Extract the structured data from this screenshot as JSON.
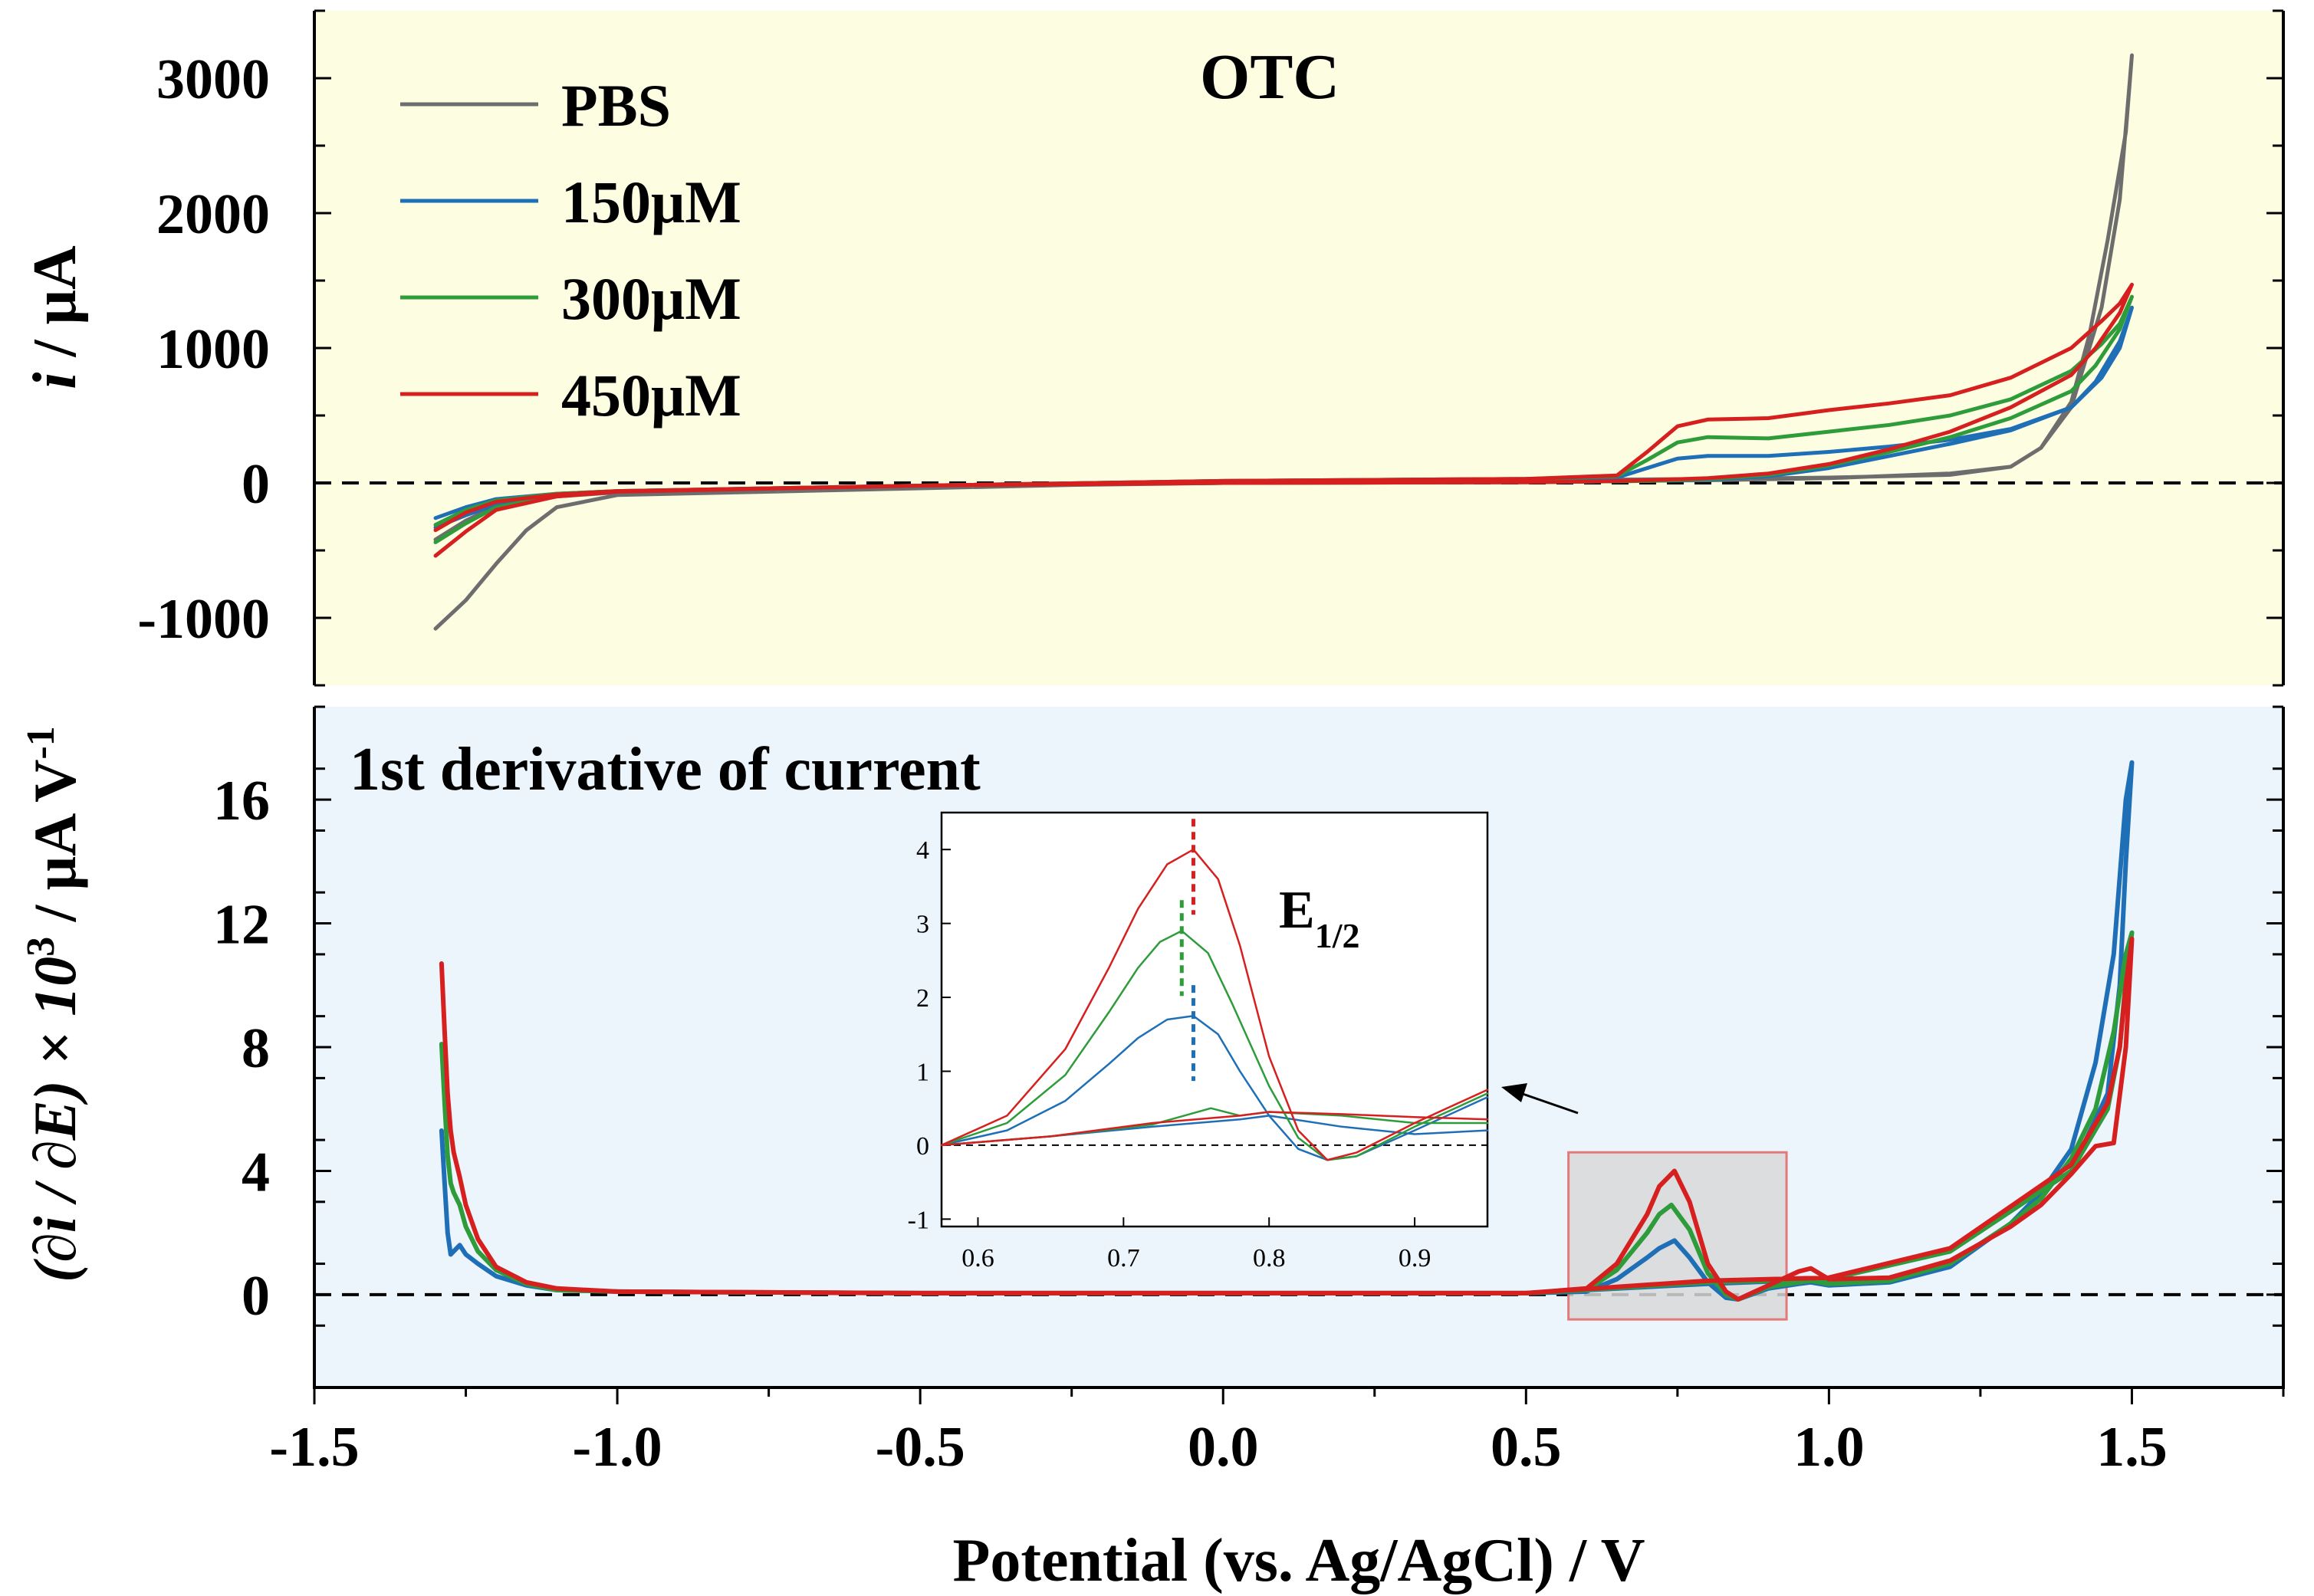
{
  "colors": {
    "top_background": "#fdfde2",
    "bottom_background": "#ecf4fc",
    "zoom_box_fill": "#d8d8d8",
    "zoom_box_stroke": "#e37a78",
    "PBS": "#6d6d6d",
    "150uM": "#1f6fb7",
    "300uM": "#2e9c3a",
    "450uM": "#d62020"
  },
  "xlabel": "Potential (vs. Ag/AgCl)  / V",
  "chart_data": [
    {
      "type": "line",
      "panel": "top",
      "title": "OTC",
      "ylabel_italic": "i",
      "ylabel_rest": " / μA",
      "xlim": [
        -1.5,
        1.75
      ],
      "ylim": [
        -1500,
        3500
      ],
      "xticks": [
        "-1.5",
        "-1.0",
        "-0.5",
        "0.0",
        "0.5",
        "1.0",
        "1.5"
      ],
      "yticks": [
        "-1000",
        "0",
        "1000",
        "2000",
        "3000"
      ],
      "legend_position": "top-left",
      "baseline": 0,
      "series": [
        {
          "name": "PBS",
          "color_key": "PBS",
          "x": [
            -1.3,
            -1.25,
            -1.2,
            -1.15,
            -1.1,
            -1.0,
            -0.5,
            0.0,
            0.5,
            0.8,
            1.0,
            1.2,
            1.3,
            1.35,
            1.4,
            1.45,
            1.48,
            1.5,
            1.49,
            1.46,
            1.43,
            1.4,
            1.35,
            1.3,
            1.2,
            1.0,
            0.8,
            0.5,
            0.0,
            -0.5,
            -1.0,
            -1.1,
            -1.2,
            -1.25,
            -1.3
          ],
          "y": [
            -1080,
            -870,
            -600,
            -350,
            -180,
            -90,
            -40,
            10,
            20,
            30,
            40,
            60,
            120,
            260,
            560,
            1300,
            2100,
            3170,
            2600,
            1800,
            1100,
            600,
            260,
            120,
            70,
            35,
            20,
            10,
            0,
            -30,
            -70,
            -100,
            -170,
            -280,
            -420
          ]
        },
        {
          "name": "150μM",
          "color_key": "150uM",
          "x": [
            -1.3,
            -1.25,
            -1.2,
            -1.1,
            -1.0,
            -0.5,
            0.0,
            0.5,
            0.65,
            0.7,
            0.75,
            0.8,
            0.9,
            1.0,
            1.1,
            1.2,
            1.3,
            1.4,
            1.45,
            1.48,
            1.5,
            1.48,
            1.44,
            1.4,
            1.3,
            1.2,
            1.1,
            1.0,
            0.9,
            0.8,
            0.7,
            0.6,
            0.5,
            0.0,
            -0.5,
            -1.0,
            -1.1,
            -1.2,
            -1.25,
            -1.3
          ],
          "y": [
            -330,
            -240,
            -160,
            -90,
            -60,
            -20,
            15,
            30,
            40,
            110,
            180,
            200,
            200,
            230,
            270,
            320,
            400,
            560,
            780,
            1000,
            1300,
            1050,
            750,
            560,
            390,
            290,
            200,
            110,
            50,
            25,
            15,
            10,
            5,
            0,
            -20,
            -60,
            -80,
            -120,
            -180,
            -260
          ]
        },
        {
          "name": "300μM",
          "color_key": "300uM",
          "x": [
            -1.3,
            -1.25,
            -1.2,
            -1.1,
            -1.0,
            -0.5,
            0.0,
            0.5,
            0.65,
            0.7,
            0.75,
            0.8,
            0.9,
            1.0,
            1.1,
            1.2,
            1.3,
            1.4,
            1.45,
            1.48,
            1.5,
            1.48,
            1.44,
            1.4,
            1.3,
            1.2,
            1.1,
            1.0,
            0.9,
            0.8,
            0.7,
            0.6,
            0.5,
            0.0,
            -0.5,
            -1.0,
            -1.1,
            -1.2,
            -1.25,
            -1.3
          ],
          "y": [
            -440,
            -300,
            -180,
            -95,
            -60,
            -20,
            15,
            30,
            50,
            170,
            300,
            340,
            330,
            380,
            430,
            500,
            620,
            830,
            1030,
            1180,
            1380,
            1140,
            870,
            680,
            480,
            340,
            230,
            130,
            60,
            30,
            15,
            10,
            5,
            0,
            -20,
            -60,
            -80,
            -130,
            -200,
            -310
          ]
        },
        {
          "name": "450μM",
          "color_key": "450uM",
          "x": [
            -1.3,
            -1.25,
            -1.2,
            -1.1,
            -1.0,
            -0.5,
            0.0,
            0.5,
            0.65,
            0.7,
            0.75,
            0.8,
            0.9,
            1.0,
            1.1,
            1.2,
            1.3,
            1.4,
            1.45,
            1.48,
            1.5,
            1.48,
            1.44,
            1.4,
            1.3,
            1.2,
            1.1,
            1.0,
            0.9,
            0.8,
            0.7,
            0.6,
            0.5,
            0.0,
            -0.5,
            -1.0,
            -1.1,
            -1.2,
            -1.25,
            -1.3
          ],
          "y": [
            -540,
            -360,
            -200,
            -100,
            -65,
            -20,
            15,
            30,
            55,
            230,
            420,
            470,
            480,
            540,
            590,
            650,
            780,
            1000,
            1200,
            1330,
            1470,
            1260,
            1000,
            800,
            560,
            380,
            250,
            140,
            70,
            35,
            20,
            10,
            5,
            0,
            -20,
            -60,
            -85,
            -140,
            -220,
            -350
          ]
        }
      ]
    },
    {
      "type": "line",
      "panel": "bottom",
      "title": "1st derivative of current",
      "ylabel_main": "(∂i / ∂E) × 10",
      "ylabel_sup": "3",
      "ylabel_tail": " / μA V",
      "ylabel_sup2": "-1",
      "xlim": [
        -1.5,
        1.75
      ],
      "ylim": [
        -3,
        19
      ],
      "yticks": [
        "0",
        "4",
        "8",
        "12",
        "16"
      ],
      "baseline": 0,
      "zoom_box": {
        "x": [
          0.57,
          0.93
        ],
        "y": [
          -0.8,
          4.6
        ]
      },
      "series": [
        {
          "name": "150μM",
          "color_key": "150uM",
          "x": [
            -1.29,
            -1.285,
            -1.28,
            -1.275,
            -1.27,
            -1.26,
            -1.25,
            -1.23,
            -1.2,
            -1.15,
            -1.1,
            -1.0,
            -0.5,
            0.0,
            0.5,
            0.6,
            0.65,
            0.7,
            0.72,
            0.745,
            0.77,
            0.8,
            0.83,
            0.85,
            0.9,
            0.95,
            0.97,
            1.0,
            1.1,
            1.2,
            1.3,
            1.35,
            1.4,
            1.44,
            1.47,
            1.49,
            1.5,
            1.49,
            1.48,
            1.46,
            1.4,
            1.2,
            1.0,
            0.8,
            0.5
          ],
          "y": [
            5.3,
            3.6,
            2.0,
            1.3,
            1.4,
            1.6,
            1.3,
            1.0,
            0.6,
            0.3,
            0.15,
            0.1,
            0.05,
            0.05,
            0.05,
            0.1,
            0.5,
            1.2,
            1.5,
            1.75,
            1.2,
            0.4,
            -0.1,
            -0.15,
            0.2,
            0.35,
            0.4,
            0.3,
            0.4,
            0.9,
            2.3,
            3.3,
            4.7,
            7.5,
            11.0,
            16.0,
            17.2,
            14.0,
            10.0,
            6.5,
            4.0,
            1.4,
            0.5,
            0.35,
            0.05
          ]
        },
        {
          "name": "300μM",
          "color_key": "300uM",
          "x": [
            -1.29,
            -1.285,
            -1.28,
            -1.275,
            -1.27,
            -1.26,
            -1.25,
            -1.23,
            -1.2,
            -1.15,
            -1.1,
            -1.0,
            -0.5,
            0.0,
            0.5,
            0.6,
            0.65,
            0.7,
            0.72,
            0.74,
            0.77,
            0.8,
            0.83,
            0.85,
            0.9,
            0.95,
            0.97,
            1.0,
            1.1,
            1.2,
            1.3,
            1.35,
            1.4,
            1.44,
            1.47,
            1.49,
            1.5,
            1.49,
            1.48,
            1.46,
            1.4,
            1.2,
            1.0,
            0.8,
            0.5
          ],
          "y": [
            8.1,
            6.2,
            4.5,
            3.6,
            3.3,
            2.9,
            2.2,
            1.4,
            0.8,
            0.35,
            0.15,
            0.1,
            0.05,
            0.05,
            0.05,
            0.15,
            0.8,
            2.0,
            2.6,
            2.9,
            2.1,
            0.7,
            0.0,
            -0.15,
            0.25,
            0.4,
            0.45,
            0.35,
            0.45,
            1.0,
            2.3,
            3.1,
            4.4,
            6.0,
            8.5,
            11.0,
            11.7,
            10.2,
            8.0,
            6.0,
            4.0,
            1.4,
            0.5,
            0.4,
            0.05
          ]
        },
        {
          "name": "450μM",
          "color_key": "450uM",
          "x": [
            -1.29,
            -1.285,
            -1.28,
            -1.275,
            -1.27,
            -1.26,
            -1.25,
            -1.23,
            -1.2,
            -1.15,
            -1.1,
            -1.0,
            -0.5,
            0.0,
            0.5,
            0.6,
            0.65,
            0.7,
            0.72,
            0.745,
            0.77,
            0.8,
            0.83,
            0.85,
            0.9,
            0.95,
            0.97,
            1.0,
            1.1,
            1.2,
            1.3,
            1.35,
            1.4,
            1.44,
            1.47,
            1.49,
            1.5,
            1.49,
            1.48,
            1.46,
            1.4,
            1.2,
            1.0,
            0.8,
            0.5
          ],
          "y": [
            10.7,
            8.5,
            6.5,
            5.3,
            4.6,
            3.8,
            2.9,
            1.8,
            0.9,
            0.4,
            0.2,
            0.1,
            0.05,
            0.05,
            0.05,
            0.2,
            1.0,
            2.6,
            3.5,
            4.0,
            3.0,
            1.0,
            0.1,
            -0.15,
            0.3,
            0.75,
            0.85,
            0.5,
            0.55,
            1.1,
            2.2,
            2.9,
            3.9,
            4.8,
            4.9,
            8.0,
            11.5,
            10.0,
            8.0,
            6.2,
            4.2,
            1.5,
            0.55,
            0.45,
            0.05
          ]
        }
      ]
    },
    {
      "type": "line",
      "panel": "inset",
      "annotation_main": "E",
      "annotation_sub": "1/2",
      "xlim": [
        0.575,
        0.95
      ],
      "ylim": [
        -1.1,
        4.5
      ],
      "xticks": [
        "0.6",
        "0.7",
        "0.8",
        "0.9"
      ],
      "yticks": [
        "-1",
        "0",
        "1",
        "2",
        "3",
        "4"
      ],
      "peak_markers": [
        {
          "color_key": "450uM",
          "x": 0.748,
          "ymax": 4.0
        },
        {
          "color_key": "300uM",
          "x": 0.74,
          "ymax": 2.9
        },
        {
          "color_key": "150uM",
          "x": 0.748,
          "ymax": 1.75
        }
      ],
      "series": [
        {
          "name": "150μM",
          "color_key": "150uM",
          "x": [
            0.575,
            0.62,
            0.66,
            0.69,
            0.71,
            0.73,
            0.748,
            0.765,
            0.78,
            0.8,
            0.82,
            0.84,
            0.86,
            0.9,
            0.95
          ],
          "y": [
            0.0,
            0.2,
            0.6,
            1.1,
            1.45,
            1.7,
            1.75,
            1.5,
            1.0,
            0.4,
            -0.05,
            -0.2,
            -0.15,
            0.2,
            0.65
          ]
        },
        {
          "name": "150μM",
          "color_key": "150uM",
          "x": [
            0.575,
            0.65,
            0.72,
            0.78,
            0.8,
            0.85,
            0.9,
            0.95
          ],
          "y": [
            0.0,
            0.12,
            0.25,
            0.35,
            0.4,
            0.25,
            0.15,
            0.2
          ]
        },
        {
          "name": "300μM",
          "color_key": "300uM",
          "x": [
            0.575,
            0.62,
            0.66,
            0.69,
            0.71,
            0.725,
            0.74,
            0.758,
            0.775,
            0.8,
            0.82,
            0.84,
            0.86,
            0.9,
            0.95
          ],
          "y": [
            0.0,
            0.3,
            0.95,
            1.8,
            2.4,
            2.75,
            2.9,
            2.6,
            1.9,
            0.8,
            0.1,
            -0.2,
            -0.15,
            0.25,
            0.7
          ]
        },
        {
          "name": "300μM",
          "color_key": "300uM",
          "x": [
            0.575,
            0.65,
            0.72,
            0.76,
            0.78,
            0.8,
            0.85,
            0.9,
            0.95
          ],
          "y": [
            0.0,
            0.12,
            0.28,
            0.5,
            0.4,
            0.45,
            0.4,
            0.3,
            0.3
          ]
        },
        {
          "name": "450μM",
          "color_key": "450uM",
          "x": [
            0.575,
            0.62,
            0.66,
            0.69,
            0.71,
            0.73,
            0.748,
            0.765,
            0.78,
            0.8,
            0.82,
            0.84,
            0.86,
            0.9,
            0.95
          ],
          "y": [
            0.0,
            0.4,
            1.3,
            2.4,
            3.2,
            3.8,
            4.0,
            3.6,
            2.7,
            1.2,
            0.2,
            -0.2,
            -0.1,
            0.3,
            0.75
          ]
        },
        {
          "name": "450μM",
          "color_key": "450uM",
          "x": [
            0.575,
            0.65,
            0.72,
            0.78,
            0.8,
            0.85,
            0.9,
            0.95
          ],
          "y": [
            0.0,
            0.12,
            0.3,
            0.4,
            0.45,
            0.42,
            0.38,
            0.35
          ]
        }
      ]
    }
  ]
}
